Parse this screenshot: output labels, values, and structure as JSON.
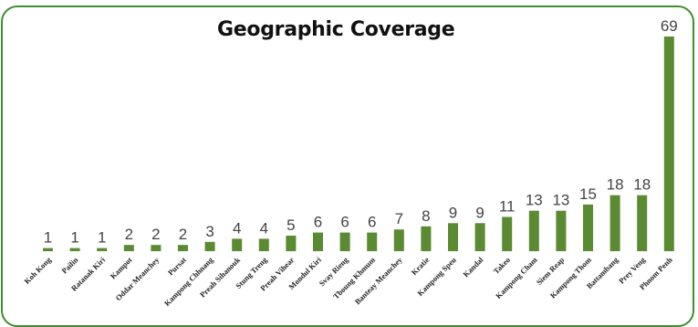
{
  "chart_data": {
    "type": "bar",
    "title": "Geographic Coverage",
    "categories": [
      "Koh Kong",
      "Pailin",
      "Ratanak Kiri",
      "Kampot",
      "Oddar Meanchey",
      "Pursat",
      "Kampong Chhnang",
      "Preah Sihanouk",
      "Stung Treng",
      "Preah Vihear",
      "Mondul Kiri",
      "Svay Rieng",
      "Tboung Khmum",
      "Banteay Meanchey",
      "Kratie",
      "Kampong Speu",
      "Kandal",
      "Takeo",
      "Kampong Cham",
      "Siem Reap",
      "Kampong Thom",
      "Battambang",
      "Prey Veng",
      "Phnom Penh"
    ],
    "values": [
      1,
      1,
      1,
      2,
      2,
      2,
      3,
      4,
      4,
      5,
      6,
      6,
      6,
      7,
      8,
      9,
      9,
      11,
      13,
      13,
      15,
      18,
      18,
      69
    ],
    "data_labels": true,
    "ylim": [
      0,
      69
    ],
    "grid": false,
    "legend": false,
    "colors": {
      "bar": "#5a8a32",
      "frame": "#3e8e2e"
    }
  }
}
